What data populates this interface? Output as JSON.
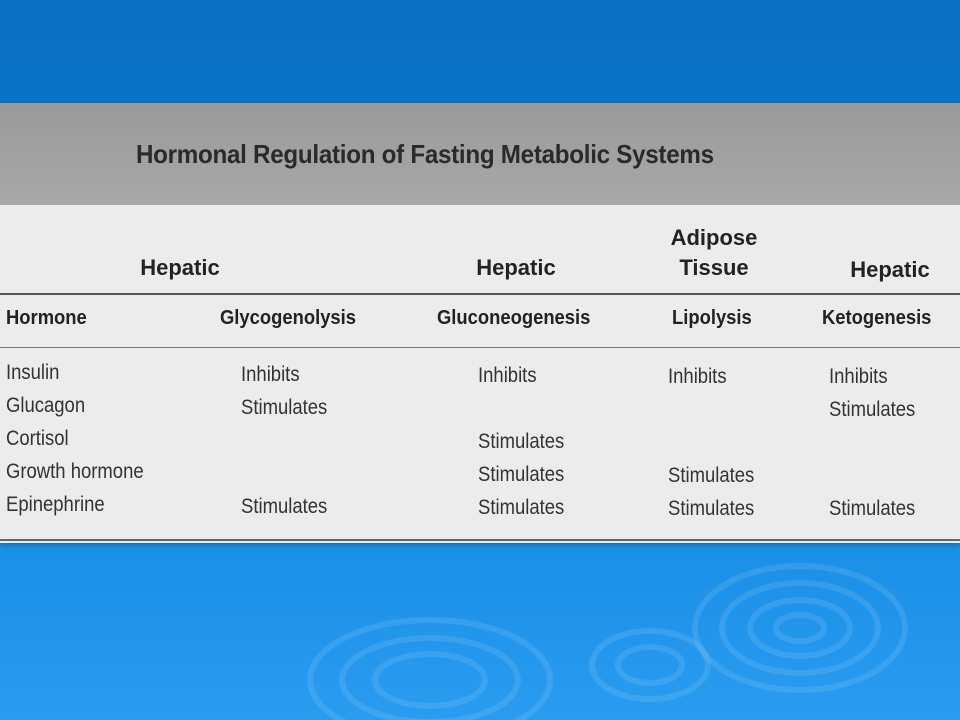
{
  "table": {
    "title": "Hormonal Regulation of Fasting Metabolic Systems",
    "groups": [
      {
        "label": "Hepatic"
      },
      {
        "label": "Hepatic"
      },
      {
        "label_line1": "Adipose",
        "label_line2": "Tissue"
      },
      {
        "label": "Hepatic"
      }
    ],
    "columns": [
      "Hormone",
      "Glycogenolysis",
      "Gluconeogenesis",
      "Lipolysis",
      "Ketogenesis"
    ],
    "rows": [
      {
        "hormone": "Insulin",
        "glycogenolysis": "Inhibits",
        "gluconeogenesis": "Inhibits",
        "lipolysis": "Inhibits",
        "ketogenesis": "Inhibits"
      },
      {
        "hormone": "Glucagon",
        "glycogenolysis": "Stimulates",
        "gluconeogenesis": "",
        "lipolysis": "",
        "ketogenesis": "Stimulates"
      },
      {
        "hormone": "Cortisol",
        "glycogenolysis": "",
        "gluconeogenesis": "Stimulates",
        "lipolysis": "",
        "ketogenesis": ""
      },
      {
        "hormone": "Growth hormone",
        "glycogenolysis": "",
        "gluconeogenesis": "Stimulates",
        "lipolysis": "Stimulates",
        "ketogenesis": ""
      },
      {
        "hormone": "Epinephrine",
        "glycogenolysis": "Stimulates",
        "gluconeogenesis": "Stimulates",
        "lipolysis": "Stimulates",
        "ketogenesis": "Stimulates"
      }
    ]
  },
  "colors": {
    "background": "#0b7ad1",
    "title_band": "#a3a3a3",
    "table_bg": "#ececec",
    "text": "#222222"
  }
}
